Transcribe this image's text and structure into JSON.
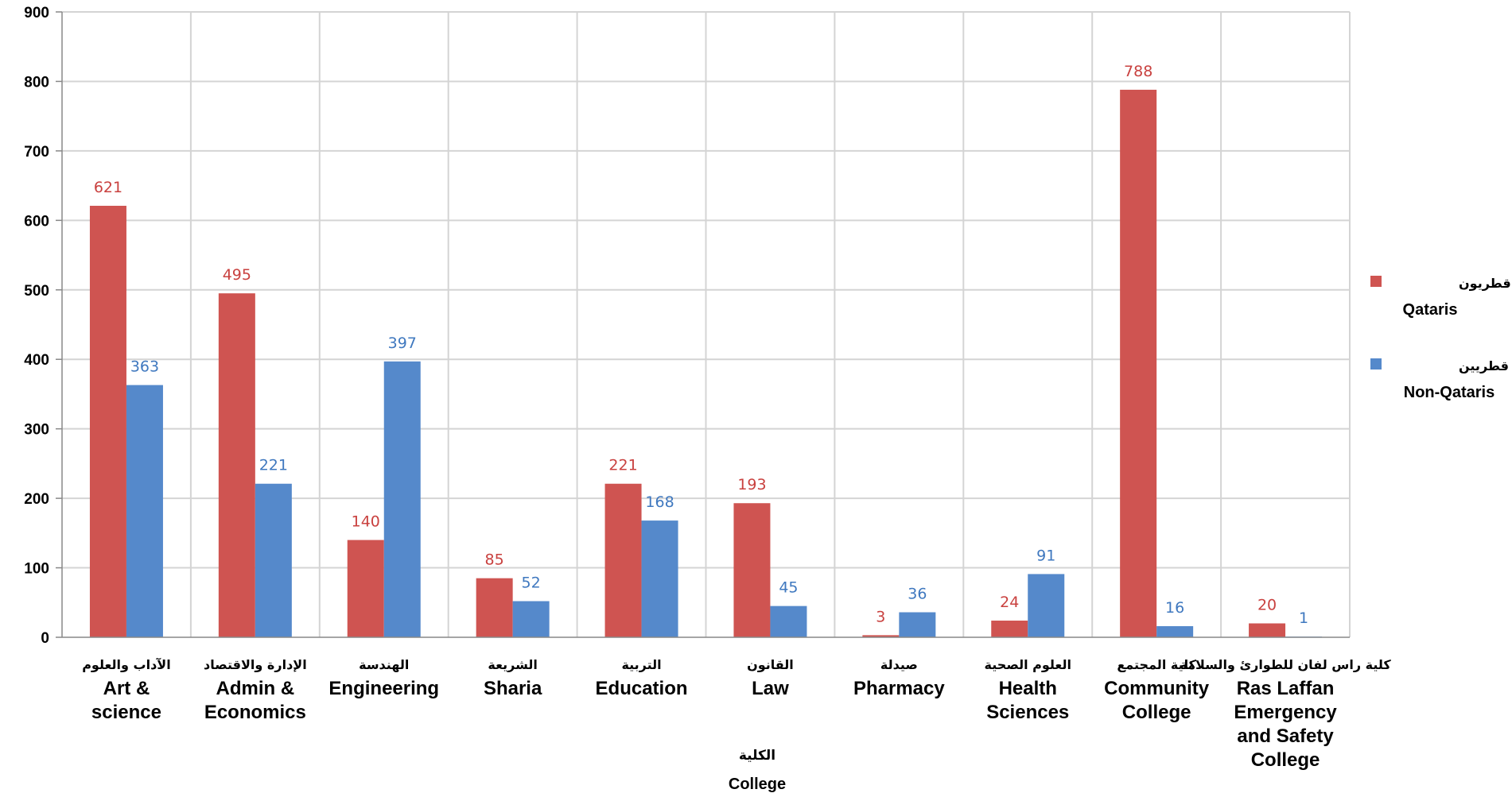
{
  "chart_data": {
    "type": "bar",
    "categories": [
      {
        "ar": "الآداب والعلوم",
        "en": [
          "Art &",
          "science"
        ]
      },
      {
        "ar": "الإدارة والاقتصاد",
        "en": [
          "Admin &",
          "Economics"
        ]
      },
      {
        "ar": "الهندسة",
        "en": [
          "Engineering"
        ]
      },
      {
        "ar": "الشريعة",
        "en": [
          "Sharia"
        ]
      },
      {
        "ar": "التربية",
        "en": [
          "Education"
        ]
      },
      {
        "ar": "القانون",
        "en": [
          "Law"
        ]
      },
      {
        "ar": "صيدلة",
        "en": [
          "Pharmacy"
        ]
      },
      {
        "ar": "العلوم الصحية",
        "en": [
          "Health",
          "Sciences"
        ]
      },
      {
        "ar": "كلية المجتمع",
        "en": [
          "Community",
          "College"
        ]
      },
      {
        "ar": "كلية راس لفان للطوارئ والسلامة",
        "en": [
          "Ras Laffan",
          "Emergency",
          "and Safety",
          "College"
        ]
      }
    ],
    "series": [
      {
        "name_ar": "قطريون",
        "name": "Qataris",
        "color": "#cf5451",
        "values": [
          621,
          495,
          140,
          85,
          221,
          193,
          3,
          24,
          788,
          20
        ]
      },
      {
        "name_ar": "غير قطريين",
        "name": "Non-Qataris",
        "color": "#5589cb",
        "values": [
          363,
          221,
          397,
          52,
          168,
          45,
          36,
          91,
          16,
          1
        ]
      }
    ],
    "ylim": [
      0,
      900
    ],
    "yticks": [
      0,
      100,
      200,
      300,
      400,
      500,
      600,
      700,
      800,
      900
    ],
    "xlabel_ar": "الكلية",
    "xlabel": "College",
    "grid": true,
    "legend_position": "right",
    "label_colors": {
      "Qataris": "#c9413f",
      "Non-Qataris": "#3f78bf"
    }
  }
}
